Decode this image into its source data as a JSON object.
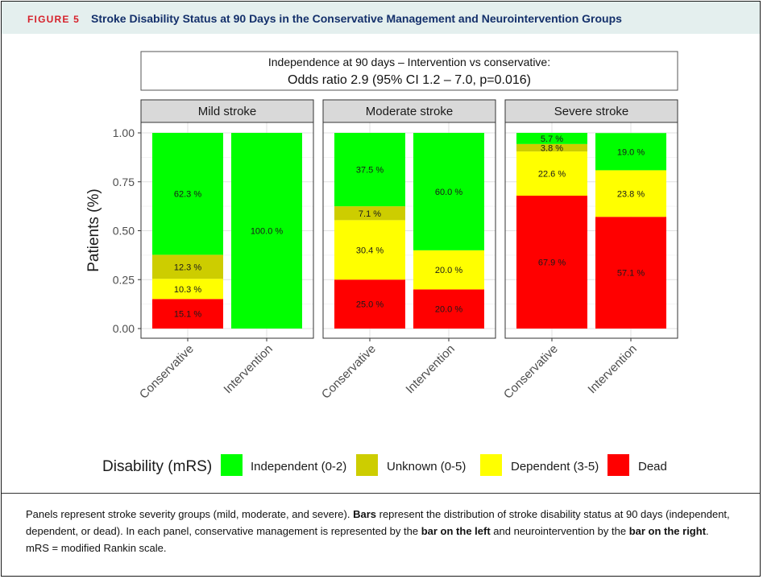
{
  "figure": {
    "label": "FIGURE 5",
    "title": "Stroke Disability Status at 90 Days in the Conservative Management and Neurointervention Groups"
  },
  "annotation": {
    "line1": "Independence at 90 days –  Intervention vs conservative:",
    "line2": "Odds ratio 2.9 (95% CI 1.2 – 7.0, p=0.016)"
  },
  "chart_data": {
    "type": "bar",
    "stacked": true,
    "ylabel": "Patients (%)",
    "ylim": [
      0,
      1
    ],
    "yticks": [
      "0.00",
      "0.25",
      "0.50",
      "0.75",
      "1.00"
    ],
    "grid": true,
    "legend": {
      "title": "Disability (mRS)",
      "placement": "bottom",
      "entries": [
        {
          "name": "Independent (0-2)",
          "color": "#00ff00"
        },
        {
          "name": "Unknown (0-5)",
          "color": "#cdcd00"
        },
        {
          "name": "Dependent (3-5)",
          "color": "#ffff00"
        },
        {
          "name": "Dead",
          "color": "#ff0000"
        }
      ]
    },
    "stack_order_bottom_to_top": [
      "Dead",
      "Dependent (3-5)",
      "Unknown (0-5)",
      "Independent (0-2)"
    ],
    "panels": [
      {
        "title": "Mild stroke",
        "categories": [
          "Conservative",
          "Intervention"
        ],
        "series": [
          {
            "name": "Dead",
            "values": [
              0.151,
              0
            ],
            "labels": [
              "15.1 %",
              ""
            ]
          },
          {
            "name": "Dependent (3-5)",
            "values": [
              0.103,
              0
            ],
            "labels": [
              "10.3 %",
              ""
            ]
          },
          {
            "name": "Unknown (0-5)",
            "values": [
              0.123,
              0
            ],
            "labels": [
              "12.3 %",
              ""
            ]
          },
          {
            "name": "Independent (0-2)",
            "values": [
              0.623,
              1.0
            ],
            "labels": [
              "62.3 %",
              "100.0 %"
            ]
          }
        ]
      },
      {
        "title": "Moderate stroke",
        "categories": [
          "Conservative",
          "Intervention"
        ],
        "series": [
          {
            "name": "Dead",
            "values": [
              0.25,
              0.2
            ],
            "labels": [
              "25.0 %",
              "20.0 %"
            ]
          },
          {
            "name": "Dependent (3-5)",
            "values": [
              0.304,
              0.2
            ],
            "labels": [
              "30.4 %",
              "20.0 %"
            ]
          },
          {
            "name": "Unknown (0-5)",
            "values": [
              0.071,
              0
            ],
            "labels": [
              "7.1 %",
              ""
            ]
          },
          {
            "name": "Independent (0-2)",
            "values": [
              0.375,
              0.6
            ],
            "labels": [
              "37.5 %",
              "60.0 %"
            ]
          }
        ]
      },
      {
        "title": "Severe stroke",
        "categories": [
          "Conservative",
          "Intervention"
        ],
        "series": [
          {
            "name": "Dead",
            "values": [
              0.679,
              0.571
            ],
            "labels": [
              "67.9 %",
              "57.1 %"
            ]
          },
          {
            "name": "Dependent (3-5)",
            "values": [
              0.226,
              0.238
            ],
            "labels": [
              "22.6 %",
              "23.8 %"
            ]
          },
          {
            "name": "Unknown (0-5)",
            "values": [
              0.038,
              0
            ],
            "labels": [
              "3.8 %",
              ""
            ]
          },
          {
            "name": "Independent (0-2)",
            "values": [
              0.057,
              0.19
            ],
            "labels": [
              "5.7 %",
              "19.0 %"
            ]
          }
        ]
      }
    ]
  },
  "caption": {
    "p1": "Panels represent stroke severity groups (mild, moderate, and severe). ",
    "b1": "Bars",
    "p2": " represent the distribution of stroke disability status at 90 days (independent, dependent, or dead). In each panel, conservative management is represented by the ",
    "b2": "bar on the left",
    "p3": " and neurointervention by the ",
    "b3": "bar on the right",
    "p4": ". mRS = modified Rankin scale."
  }
}
